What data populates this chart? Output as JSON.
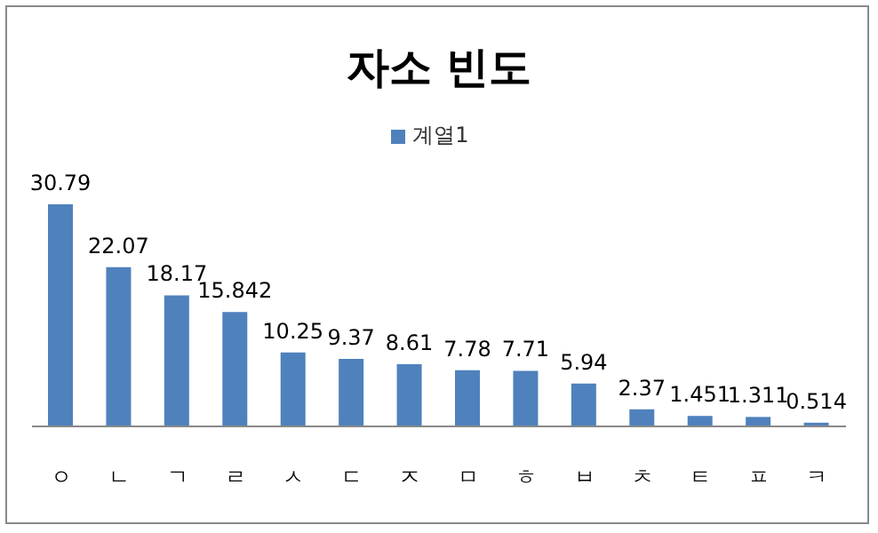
{
  "chart_data": {
    "type": "bar",
    "title": "자소 빈도",
    "categories": [
      "ㅇ",
      "ㄴ",
      "ㄱ",
      "ㄹ",
      "ㅅ",
      "ㄷ",
      "ㅈ",
      "ㅁ",
      "ㅎ",
      "ㅂ",
      "ㅊ",
      "ㅌ",
      "ㅍ",
      "ㅋ"
    ],
    "series": [
      {
        "name": "계열1",
        "color": "#4f81bd",
        "values": [
          30.79,
          22.07,
          18.17,
          15.842,
          10.25,
          9.37,
          8.61,
          7.78,
          7.71,
          5.94,
          2.37,
          1.451,
          1.311,
          0.514
        ]
      }
    ],
    "data_labels": true,
    "legend": "top",
    "grid": false
  }
}
